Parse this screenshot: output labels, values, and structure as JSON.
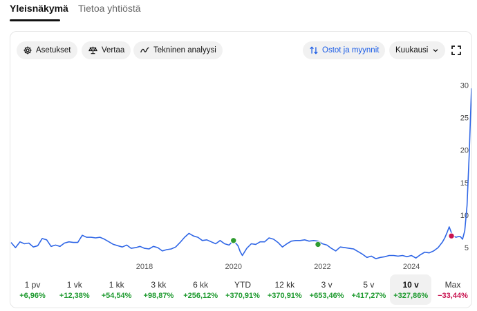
{
  "tabs": [
    {
      "label": "Yleisnäkymä",
      "active": true
    },
    {
      "label": "Tietoa yhtiöstä",
      "active": false
    }
  ],
  "toolbar": {
    "settings": "Asetukset",
    "compare": "Vertaa",
    "technical": "Tekninen analyysi",
    "trades": "Ostot ja myynnit",
    "interval": "Kuukausi"
  },
  "chart_data": {
    "type": "line",
    "y_axis_side": "right",
    "ylim": [
      3,
      31
    ],
    "yticks": [
      5,
      10,
      15,
      20,
      25,
      30
    ],
    "xlim": [
      2015.0,
      2025.35
    ],
    "xticks": [
      {
        "x": 2018,
        "label": "2018"
      },
      {
        "x": 2020,
        "label": "2020"
      },
      {
        "x": 2022,
        "label": "2022"
      },
      {
        "x": 2024,
        "label": "2024"
      }
    ],
    "line_color": "#2f66e6",
    "series": [
      {
        "points": [
          [
            2015.0,
            5.8
          ],
          [
            2015.1,
            5.0
          ],
          [
            2015.2,
            5.9
          ],
          [
            2015.3,
            5.6
          ],
          [
            2015.4,
            5.7
          ],
          [
            2015.5,
            5.1
          ],
          [
            2015.6,
            5.3
          ],
          [
            2015.7,
            6.4
          ],
          [
            2015.8,
            6.2
          ],
          [
            2015.9,
            5.2
          ],
          [
            2016.0,
            5.4
          ],
          [
            2016.1,
            5.2
          ],
          [
            2016.2,
            5.7
          ],
          [
            2016.3,
            5.9
          ],
          [
            2016.4,
            5.8
          ],
          [
            2016.5,
            5.8
          ],
          [
            2016.6,
            6.9
          ],
          [
            2016.7,
            6.6
          ],
          [
            2016.8,
            6.6
          ],
          [
            2016.9,
            6.5
          ],
          [
            2017.0,
            6.6
          ],
          [
            2017.1,
            6.3
          ],
          [
            2017.2,
            5.9
          ],
          [
            2017.3,
            5.5
          ],
          [
            2017.4,
            5.3
          ],
          [
            2017.5,
            5.1
          ],
          [
            2017.6,
            5.4
          ],
          [
            2017.7,
            4.9
          ],
          [
            2017.8,
            5.0
          ],
          [
            2017.9,
            5.2
          ],
          [
            2018.0,
            4.9
          ],
          [
            2018.1,
            4.8
          ],
          [
            2018.2,
            5.2
          ],
          [
            2018.3,
            5.0
          ],
          [
            2018.4,
            4.5
          ],
          [
            2018.5,
            4.7
          ],
          [
            2018.6,
            4.8
          ],
          [
            2018.7,
            5.1
          ],
          [
            2018.8,
            5.8
          ],
          [
            2018.9,
            6.6
          ],
          [
            2019.0,
            7.2
          ],
          [
            2019.1,
            6.8
          ],
          [
            2019.2,
            6.6
          ],
          [
            2019.3,
            6.1
          ],
          [
            2019.4,
            6.2
          ],
          [
            2019.5,
            5.9
          ],
          [
            2019.6,
            5.6
          ],
          [
            2019.7,
            6.1
          ],
          [
            2019.8,
            5.6
          ],
          [
            2019.9,
            5.4
          ],
          [
            2020.0,
            6.1
          ],
          [
            2020.1,
            5.3
          ],
          [
            2020.15,
            4.4
          ],
          [
            2020.2,
            3.8
          ],
          [
            2020.3,
            4.9
          ],
          [
            2020.4,
            5.6
          ],
          [
            2020.5,
            5.5
          ],
          [
            2020.6,
            5.9
          ],
          [
            2020.7,
            5.9
          ],
          [
            2020.8,
            6.5
          ],
          [
            2020.9,
            6.3
          ],
          [
            2021.0,
            5.8
          ],
          [
            2021.1,
            5.1
          ],
          [
            2021.2,
            5.6
          ],
          [
            2021.3,
            6.0
          ],
          [
            2021.4,
            6.1
          ],
          [
            2021.5,
            6.1
          ],
          [
            2021.6,
            6.2
          ],
          [
            2021.7,
            6.0
          ],
          [
            2021.8,
            6.1
          ],
          [
            2021.9,
            6.0
          ],
          [
            2022.0,
            5.6
          ],
          [
            2022.1,
            5.4
          ],
          [
            2022.2,
            4.9
          ],
          [
            2022.3,
            4.5
          ],
          [
            2022.4,
            5.1
          ],
          [
            2022.5,
            5.0
          ],
          [
            2022.6,
            4.9
          ],
          [
            2022.7,
            4.8
          ],
          [
            2022.8,
            4.4
          ],
          [
            2022.9,
            4.0
          ],
          [
            2023.0,
            3.5
          ],
          [
            2023.1,
            3.7
          ],
          [
            2023.2,
            3.3
          ],
          [
            2023.3,
            3.5
          ],
          [
            2023.4,
            3.6
          ],
          [
            2023.5,
            3.8
          ],
          [
            2023.6,
            3.8
          ],
          [
            2023.7,
            3.7
          ],
          [
            2023.8,
            3.8
          ],
          [
            2023.9,
            3.6
          ],
          [
            2024.0,
            3.8
          ],
          [
            2024.1,
            3.4
          ],
          [
            2024.2,
            3.9
          ],
          [
            2024.3,
            4.3
          ],
          [
            2024.4,
            4.2
          ],
          [
            2024.5,
            4.5
          ],
          [
            2024.6,
            5.0
          ],
          [
            2024.7,
            5.9
          ],
          [
            2024.75,
            6.5
          ],
          [
            2024.8,
            7.3
          ],
          [
            2024.85,
            8.2
          ],
          [
            2024.9,
            7.3
          ],
          [
            2024.95,
            6.8
          ],
          [
            2025.0,
            6.6
          ],
          [
            2025.05,
            6.7
          ],
          [
            2025.1,
            6.7
          ],
          [
            2025.15,
            6.3
          ],
          [
            2025.2,
            7.6
          ],
          [
            2025.25,
            11.5
          ],
          [
            2025.3,
            19.5
          ],
          [
            2025.35,
            29.5
          ]
        ]
      }
    ],
    "markers": [
      {
        "x": 2020.0,
        "y": 6.1,
        "color": "#2e9b2e"
      },
      {
        "x": 2021.9,
        "y": 5.5,
        "color": "#2e9b2e"
      },
      {
        "x": 2024.9,
        "y": 6.8,
        "color": "#c8124f"
      }
    ]
  },
  "periods": [
    {
      "label": "1 pv",
      "change": "+6,96%",
      "sign": "pos"
    },
    {
      "label": "1 vk",
      "change": "+12,38%",
      "sign": "pos"
    },
    {
      "label": "1 kk",
      "change": "+54,54%",
      "sign": "pos"
    },
    {
      "label": "3 kk",
      "change": "+98,87%",
      "sign": "pos"
    },
    {
      "label": "6 kk",
      "change": "+256,12%",
      "sign": "pos"
    },
    {
      "label": "YTD",
      "change": "+370,91%",
      "sign": "pos"
    },
    {
      "label": "12 kk",
      "change": "+370,91%",
      "sign": "pos"
    },
    {
      "label": "3 v",
      "change": "+653,46%",
      "sign": "pos"
    },
    {
      "label": "5 v",
      "change": "+417,27%",
      "sign": "pos"
    },
    {
      "label": "10 v",
      "change": "+327,86%",
      "sign": "pos",
      "selected": true
    },
    {
      "label": "Max",
      "change": "−33,44%",
      "sign": "neg"
    }
  ],
  "icons": {
    "settings": "gear-icon",
    "compare": "scale-icon",
    "technical": "trend-line-icon",
    "trades": "arrows-up-down-icon",
    "interval": "chevron-down-icon",
    "expand": "fullscreen-icon"
  }
}
